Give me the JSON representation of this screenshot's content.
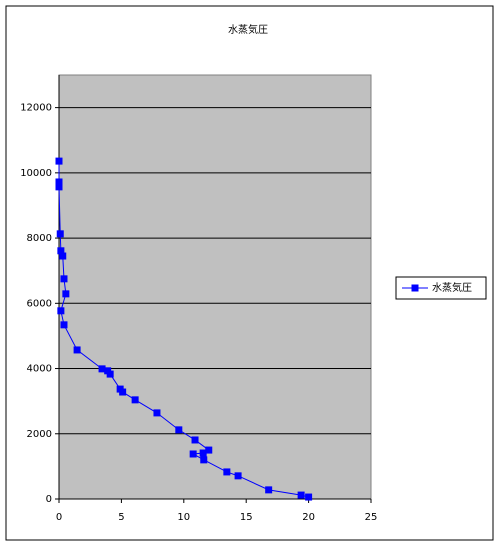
{
  "chart_data": {
    "type": "scatter",
    "title": "水蒸気圧",
    "series": [
      {
        "name": "水蒸気圧",
        "color": "#0000ff",
        "x": [
          0.0,
          0.0,
          0.0,
          0.1,
          0.15,
          0.3,
          0.4,
          0.55,
          0.15,
          0.4,
          1.45,
          3.45,
          3.9,
          4.1,
          4.9,
          5.1,
          6.1,
          7.85,
          9.6,
          10.9,
          12.0,
          11.55,
          10.75,
          11.6,
          13.45,
          14.35,
          16.8,
          19.4,
          20.0
        ],
        "values": [
          10360,
          9720,
          9570,
          8130,
          7610,
          7450,
          6750,
          6290,
          5770,
          5340,
          4570,
          3990,
          3930,
          3830,
          3370,
          3280,
          3040,
          2640,
          2120,
          1810,
          1500,
          1410,
          1380,
          1200,
          830,
          710,
          280,
          120,
          60
        ]
      }
    ],
    "xlim": [
      0,
      25
    ],
    "xticks": [
      0,
      5,
      10,
      15,
      20,
      25
    ],
    "ylim": [
      0,
      13000
    ],
    "yticks": [
      0,
      2000,
      4000,
      6000,
      8000,
      10000,
      12000
    ],
    "grid": true,
    "legend": "right",
    "plot_background": "#c0c0c0"
  }
}
